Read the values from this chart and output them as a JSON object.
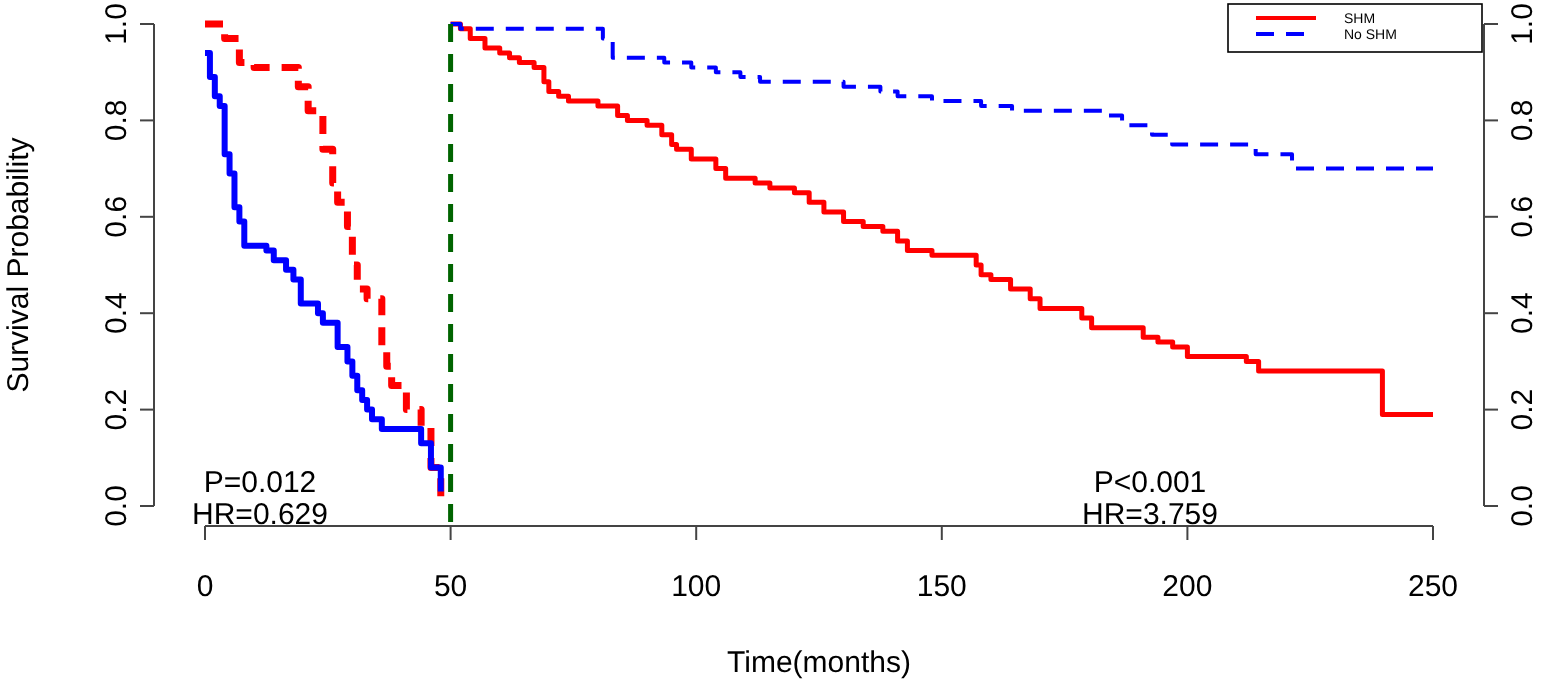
{
  "chart_data": {
    "type": "step",
    "xlabel": "Time(months)",
    "ylabel": "Survival Probability",
    "xlim": [
      0,
      250
    ],
    "xticks": [
      0,
      50,
      100,
      150,
      200,
      250
    ],
    "ylim": [
      0,
      1
    ],
    "yticks": [
      {
        "value": 0,
        "label": "0.0"
      },
      {
        "value": 0.2,
        "label": "0.2"
      },
      {
        "value": 0.4,
        "label": "0.4"
      },
      {
        "value": 0.6,
        "label": "0.6"
      },
      {
        "value": 0.8,
        "label": "0.8"
      },
      {
        "value": 1,
        "label": "1.0"
      }
    ],
    "y2lim": [
      0,
      1
    ],
    "y2ticks": [
      {
        "value": 0,
        "label": "0.0"
      },
      {
        "value": 0.2,
        "label": "0.2"
      },
      {
        "value": 0.4,
        "label": "0.4"
      },
      {
        "value": 0.6,
        "label": "0.6"
      },
      {
        "value": 0.8,
        "label": "0.8"
      },
      {
        "value": 1,
        "label": "1.0"
      }
    ],
    "grid": false,
    "legend": "top right",
    "marker": "none",
    "series": [
      {
        "color": "#ff0000",
        "line_style": "dashed",
        "x": [
          0,
          4,
          7,
          10,
          19,
          21,
          24,
          26,
          27,
          29,
          30,
          31,
          33,
          36,
          37,
          38,
          41,
          44,
          46,
          48
        ],
        "values": [
          1,
          0.97,
          0.92,
          0.91,
          0.87,
          0.82,
          0.74,
          0.67,
          0.63,
          0.58,
          0.5,
          0.45,
          0.43,
          0.33,
          0.29,
          0.25,
          0.2,
          0.165,
          0.08,
          0
        ]
      },
      {
        "color": "#0000ff",
        "line_style": "solid",
        "x": [
          0,
          1,
          2,
          3,
          4,
          5,
          6,
          7,
          8,
          12.5,
          14,
          16.5,
          18,
          19.5,
          23,
          24,
          27,
          29,
          30,
          31,
          32,
          33,
          34,
          36,
          44,
          46,
          48
        ],
        "values": [
          0.94,
          0.89,
          0.85,
          0.83,
          0.73,
          0.69,
          0.62,
          0.59,
          0.54,
          0.53,
          0.51,
          0.49,
          0.47,
          0.42,
          0.4,
          0.38,
          0.33,
          0.3,
          0.27,
          0.24,
          0.22,
          0.2,
          0.18,
          0.16,
          0.13,
          0.08,
          0.03
        ]
      },
      {
        "name": "SHM",
        "color": "#ff0000",
        "line_style": "solid",
        "x": [
          50,
          52,
          54,
          57,
          60,
          62,
          64,
          67,
          69,
          70,
          72,
          74,
          80,
          84,
          86,
          90,
          93,
          95,
          96,
          99,
          104,
          106,
          112,
          115,
          120,
          123,
          126,
          130,
          134,
          138,
          141,
          143,
          148,
          157,
          158,
          160,
          164,
          168,
          170,
          178.5,
          180.5,
          191,
          194,
          197,
          200,
          212,
          214.5,
          239.7,
          250
        ],
        "values": [
          1,
          0.99,
          0.97,
          0.95,
          0.94,
          0.93,
          0.92,
          0.91,
          0.88,
          0.86,
          0.85,
          0.84,
          0.83,
          0.81,
          0.8,
          0.79,
          0.77,
          0.75,
          0.74,
          0.72,
          0.7,
          0.68,
          0.67,
          0.66,
          0.65,
          0.63,
          0.61,
          0.59,
          0.58,
          0.57,
          0.55,
          0.53,
          0.52,
          0.5,
          0.48,
          0.47,
          0.45,
          0.43,
          0.41,
          0.39,
          0.37,
          0.35,
          0.34,
          0.33,
          0.31,
          0.3,
          0.28,
          0.19,
          0.19
        ]
      },
      {
        "name": "No SHM",
        "color": "#0000ff",
        "line_style": "dashed",
        "x": [
          50,
          52,
          81,
          83,
          93.5,
          99,
          104,
          109,
          113,
          130,
          137.5,
          141,
          148,
          158,
          164.3,
          183,
          186.7,
          192.8,
          196.9,
          213.9,
          221.3,
          250
        ],
        "values": [
          1,
          0.99,
          0.97,
          0.93,
          0.92,
          0.91,
          0.9,
          0.89,
          0.88,
          0.87,
          0.86,
          0.85,
          0.84,
          0.83,
          0.82,
          0.81,
          0.79,
          0.77,
          0.75,
          0.73,
          0.7,
          0.7
        ]
      }
    ],
    "ref_lines": [
      {
        "axis": "x",
        "value": 50,
        "color": "#006400",
        "line_style": "dashed"
      }
    ],
    "annotations": [
      "P=0.012\nHR=0.629",
      "P<0.001\nHR=3.759"
    ]
  }
}
